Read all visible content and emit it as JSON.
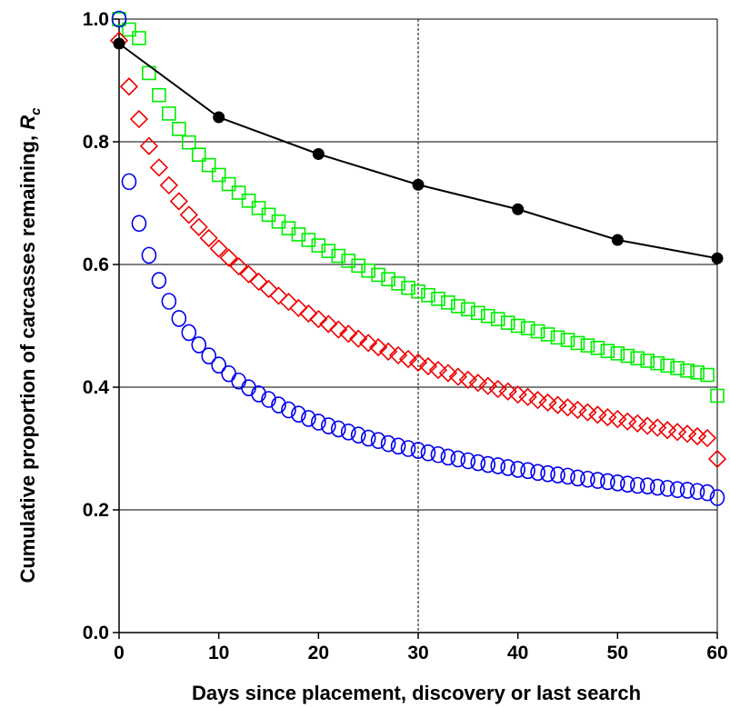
{
  "chart_data": {
    "type": "scatter",
    "title": "",
    "xlabel": "Days since placement, discovery or last search",
    "ylabel_main": "Cumulative proportion of carcasses remaining, ",
    "ylabel_symbol": "R",
    "ylabel_subscript": "c",
    "xlim": [
      0,
      60
    ],
    "ylim": [
      0,
      1.0
    ],
    "x_ticks": [
      0,
      10,
      20,
      30,
      40,
      50,
      60
    ],
    "x_tick_labels": [
      "0",
      "10",
      "20",
      "30",
      "40",
      "50",
      "60"
    ],
    "y_ticks": [
      0,
      0.2,
      0.4,
      0.6,
      0.8,
      1.0
    ],
    "y_tick_labels": [
      "0.0",
      "0.2",
      "0.4",
      "0.6",
      "0.8",
      "1.0"
    ],
    "grid": "horizontal",
    "reference_line_x": 30,
    "series": [
      {
        "marker": "filled-circle-line",
        "color": "#000000",
        "x": [
          0,
          10,
          20,
          30,
          40,
          50,
          60
        ],
        "y": [
          0.96,
          0.84,
          0.78,
          0.73,
          0.69,
          0.64,
          0.61
        ]
      },
      {
        "marker": "open-square",
        "color": "#00ee00",
        "x": [
          0,
          1,
          2,
          3,
          4,
          5,
          6,
          7,
          8,
          9,
          10,
          11,
          12,
          13,
          14,
          15,
          16,
          17,
          18,
          19,
          20,
          21,
          22,
          23,
          24,
          25,
          26,
          27,
          28,
          29,
          30,
          31,
          32,
          33,
          34,
          35,
          36,
          37,
          38,
          39,
          40,
          41,
          42,
          43,
          44,
          45,
          46,
          47,
          48,
          49,
          50,
          51,
          52,
          53,
          54,
          55,
          56,
          57,
          58,
          59,
          60
        ],
        "y": [
          1.0,
          0.983,
          0.969,
          0.912,
          0.876,
          0.846,
          0.821,
          0.799,
          0.779,
          0.762,
          0.746,
          0.731,
          0.717,
          0.704,
          0.692,
          0.681,
          0.67,
          0.659,
          0.649,
          0.64,
          0.631,
          0.622,
          0.614,
          0.606,
          0.598,
          0.59,
          0.583,
          0.576,
          0.569,
          0.562,
          0.556,
          0.55,
          0.544,
          0.538,
          0.532,
          0.527,
          0.521,
          0.516,
          0.511,
          0.505,
          0.5,
          0.496,
          0.491,
          0.486,
          0.481,
          0.477,
          0.472,
          0.468,
          0.464,
          0.459,
          0.455,
          0.451,
          0.447,
          0.443,
          0.439,
          0.435,
          0.431,
          0.427,
          0.424,
          0.42,
          0.386
        ]
      },
      {
        "marker": "open-diamond",
        "color": "#ee0000",
        "x": [
          0,
          1,
          2,
          3,
          4,
          5,
          6,
          7,
          8,
          9,
          10,
          11,
          12,
          13,
          14,
          15,
          16,
          17,
          18,
          19,
          20,
          21,
          22,
          23,
          24,
          25,
          26,
          27,
          28,
          29,
          30,
          31,
          32,
          33,
          34,
          35,
          36,
          37,
          38,
          39,
          40,
          41,
          42,
          43,
          44,
          45,
          46,
          47,
          48,
          49,
          50,
          51,
          52,
          53,
          54,
          55,
          56,
          57,
          58,
          59,
          60
        ],
        "y": [
          0.965,
          0.89,
          0.837,
          0.793,
          0.758,
          0.729,
          0.703,
          0.681,
          0.661,
          0.643,
          0.626,
          0.611,
          0.597,
          0.584,
          0.572,
          0.56,
          0.549,
          0.539,
          0.529,
          0.52,
          0.511,
          0.503,
          0.494,
          0.487,
          0.479,
          0.472,
          0.465,
          0.458,
          0.452,
          0.446,
          0.44,
          0.434,
          0.428,
          0.423,
          0.417,
          0.412,
          0.407,
          0.402,
          0.397,
          0.393,
          0.388,
          0.384,
          0.379,
          0.375,
          0.371,
          0.367,
          0.363,
          0.359,
          0.355,
          0.351,
          0.348,
          0.344,
          0.341,
          0.337,
          0.334,
          0.33,
          0.327,
          0.324,
          0.32,
          0.317,
          0.283
        ]
      },
      {
        "marker": "open-circle",
        "color": "#0000ee",
        "x": [
          0,
          1,
          2,
          3,
          4,
          5,
          6,
          7,
          8,
          9,
          10,
          11,
          12,
          13,
          14,
          15,
          16,
          17,
          18,
          19,
          20,
          21,
          22,
          23,
          24,
          25,
          26,
          27,
          28,
          29,
          30,
          31,
          32,
          33,
          34,
          35,
          36,
          37,
          38,
          39,
          40,
          41,
          42,
          43,
          44,
          45,
          46,
          47,
          48,
          49,
          50,
          51,
          52,
          53,
          54,
          55,
          56,
          57,
          58,
          59,
          60
        ],
        "y": [
          1.0,
          0.735,
          0.667,
          0.615,
          0.574,
          0.54,
          0.512,
          0.489,
          0.469,
          0.451,
          0.436,
          0.422,
          0.41,
          0.399,
          0.389,
          0.38,
          0.371,
          0.363,
          0.356,
          0.349,
          0.343,
          0.337,
          0.332,
          0.327,
          0.322,
          0.317,
          0.313,
          0.308,
          0.304,
          0.3,
          0.297,
          0.293,
          0.29,
          0.286,
          0.283,
          0.28,
          0.277,
          0.274,
          0.272,
          0.269,
          0.266,
          0.264,
          0.261,
          0.259,
          0.257,
          0.255,
          0.252,
          0.25,
          0.248,
          0.246,
          0.244,
          0.242,
          0.24,
          0.239,
          0.237,
          0.235,
          0.233,
          0.232,
          0.23,
          0.228,
          0.22
        ]
      }
    ]
  }
}
